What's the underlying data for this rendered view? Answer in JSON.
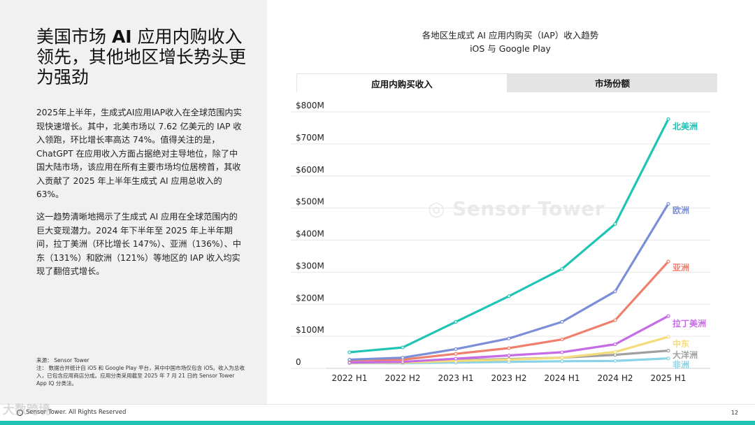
{
  "slide": {
    "headline_pre": "美国市场 ",
    "headline_bold": "AI",
    "headline_post": " 应用内购收入领先，其他地区增长势头更为强劲",
    "paragraph_1": "2025年上半年，生成式AI应用IAP收入在全球范围内实现快速增长。其中，北美市场以 7.62 亿美元的 IAP 收入领跑，环比增长率高达 74%。值得关注的是，ChatGPT 在应用收入方面占据绝对主导地位，除了中国大陆市场，该应用在所有主要市场均位居榜首，其收入贡献了 2025 年上半年生成式 AI 应用总收入的 63%。",
    "paragraph_2": "这一趋势清晰地揭示了生成式 AI 应用在全球范围内的巨大变现潜力。2024 年下半年至 2025 年上半年期间，拉丁美洲（环比增长 147%）、亚洲（136%）、中东（131%）和欧洲（121%）等地区的 IAP 收入均实现了翻倍式增长。",
    "source_1": "来源： Sensor Tower",
    "source_2": "注： 数据合并统计自 iOS 和 Google Play 平台，其中中国市场仅包含 iOS。收入为总收入，已包含应用商店分成。应用分类采用截至 2025 年 7 月 21 日的 Sensor Tower App IQ 分类法。",
    "footer": "Sensor Tower. All Rights Reserved",
    "page_number": "12",
    "stamp_text": "大数跨境"
  },
  "tabs": {
    "active": "应用内购买收入",
    "inactive": "市场份额"
  },
  "colors": {
    "teal": "#1fc4b4",
    "blue": "#7b8fd8",
    "red": "#f0806d",
    "purple": "#c66be8",
    "yellow": "#f4dc7a",
    "gray": "#a0a0a0",
    "lightblue": "#8ad2e6"
  },
  "chart_data": {
    "type": "line",
    "title": "各地区生成式 AI 应用内购买（IAP）收入趋势",
    "subtitle": "iOS 与 Google Play",
    "categories": [
      "2022 H1",
      "2022 H2",
      "2023 H1",
      "2023 H2",
      "2024 H1",
      "2024 H2",
      "2025 H1"
    ],
    "y_ticks": [
      "$800M",
      "$700M",
      "$600M",
      "$500M",
      "$400M",
      "$300M",
      "$200M",
      "$100M",
      "0"
    ],
    "ylim": [
      0,
      800
    ],
    "yunit": "M USD",
    "series": [
      {
        "name": "北美洲",
        "color": "#1fc4b4",
        "values": [
          35,
          50,
          130,
          210,
          295,
          435,
          762
        ]
      },
      {
        "name": "欧洲",
        "color": "#7b8fd8",
        "values": [
          12,
          18,
          45,
          78,
          130,
          225,
          498
        ]
      },
      {
        "name": "亚洲",
        "color": "#f0806d",
        "values": [
          10,
          12,
          30,
          48,
          75,
          135,
          318
        ]
      },
      {
        "name": "拉丁美洲",
        "color": "#c66be8",
        "values": [
          3,
          5,
          15,
          25,
          35,
          60,
          148
        ]
      },
      {
        "name": "中东",
        "color": "#f4dc7a",
        "values": [
          2,
          3,
          8,
          12,
          18,
          36,
          83
        ]
      },
      {
        "name": "大洋洲",
        "color": "#a0a0a0",
        "values": [
          2,
          3,
          10,
          14,
          18,
          27,
          40
        ]
      },
      {
        "name": "非洲",
        "color": "#8ad2e6",
        "values": [
          1,
          1,
          3,
          5,
          7,
          8,
          16
        ]
      }
    ]
  }
}
